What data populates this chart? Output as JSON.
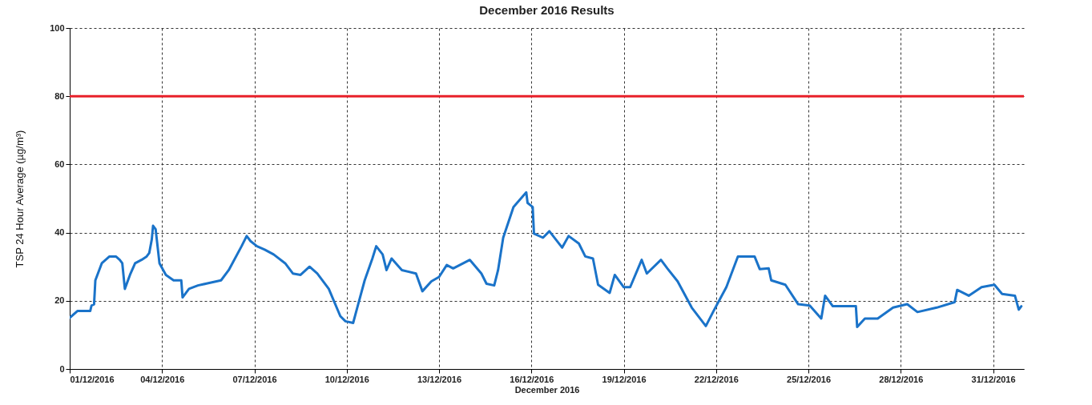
{
  "chart_data": {
    "type": "line",
    "title": "December 2016 Results",
    "xlabel": "December 2016",
    "ylabel": "TSP 24 Hour Average (µg/m³)",
    "xlim": [
      "2016-12-01",
      "2017-01-01"
    ],
    "ylim": [
      0,
      100
    ],
    "yticks": [
      0,
      20,
      40,
      60,
      80,
      100
    ],
    "xticks": [
      {
        "value": "2016-12-01",
        "label": "01/12/2016"
      },
      {
        "value": "2016-12-04",
        "label": "04/12/2016"
      },
      {
        "value": "2016-12-07",
        "label": "07/12/2016"
      },
      {
        "value": "2016-12-10",
        "label": "10/12/2016"
      },
      {
        "value": "2016-12-13",
        "label": "13/12/2016"
      },
      {
        "value": "2016-12-16",
        "label": "16/12/2016"
      },
      {
        "value": "2016-12-19",
        "label": "19/12/2016"
      },
      {
        "value": "2016-12-22",
        "label": "22/12/2016"
      },
      {
        "value": "2016-12-25",
        "label": "25/12/2016"
      },
      {
        "value": "2016-12-28",
        "label": "28/12/2016"
      },
      {
        "value": "2016-12-31",
        "label": "31/12/2016"
      }
    ],
    "grid": true,
    "line_style": "solid",
    "ref_lines": [
      {
        "axis": "y",
        "value": 80,
        "color": "#e8202a"
      }
    ],
    "x": [
      "2016-12-01T00:00",
      "2016-12-01T06:00",
      "2016-12-01T16:00",
      "2016-12-01T17:00",
      "2016-12-01T19:00",
      "2016-12-01T20:00",
      "2016-12-02T01:00",
      "2016-12-02T07:00",
      "2016-12-02T12:00",
      "2016-12-02T15:00",
      "2016-12-02T17:00",
      "2016-12-02T19:00",
      "2016-12-02T23:00",
      "2016-12-03T03:00",
      "2016-12-03T08:00",
      "2016-12-03T12:00",
      "2016-12-03T14:00",
      "2016-12-03T16:00",
      "2016-12-03T17:00",
      "2016-12-03T19:00",
      "2016-12-03T22:00",
      "2016-12-04T03:00",
      "2016-12-04T09:00",
      "2016-12-04T15:00",
      "2016-12-04T16:00",
      "2016-12-04T21:00",
      "2016-12-05T04:00",
      "2016-12-05T10:00",
      "2016-12-05T22:00",
      "2016-12-06T04:00",
      "2016-12-06T14:00",
      "2016-12-06T18:00",
      "2016-12-06T21:00",
      "2016-12-07T02:00",
      "2016-12-07T08:00",
      "2016-12-07T15:00",
      "2016-12-08T00:00",
      "2016-12-08T06:00",
      "2016-12-08T12:00",
      "2016-12-08T19:00",
      "2016-12-09T01:00",
      "2016-12-09T10:00",
      "2016-12-09T19:00",
      "2016-12-09T23:00",
      "2016-12-10T05:00",
      "2016-12-10T08:00",
      "2016-12-10T14:00",
      "2016-12-10T20:00",
      "2016-12-10T23:00",
      "2016-12-11T04:00",
      "2016-12-11T07:00",
      "2016-12-11T11:00",
      "2016-12-11T19:00",
      "2016-12-12T06:00",
      "2016-12-12T11:00",
      "2016-12-12T18:00",
      "2016-12-13T00:00",
      "2016-12-13T06:00",
      "2016-12-13T11:00",
      "2016-12-14T00:00",
      "2016-12-14T09:00",
      "2016-12-14T13:00",
      "2016-12-14T19:00",
      "2016-12-14T22:00",
      "2016-12-15T02:00",
      "2016-12-15T10:00",
      "2016-12-15T20:00",
      "2016-12-15T21:00",
      "2016-12-16T01:00",
      "2016-12-16T02:00",
      "2016-12-16T09:00",
      "2016-12-16T14:00",
      "2016-12-17T00:00",
      "2016-12-17T05:00",
      "2016-12-17T13:00",
      "2016-12-17T18:00",
      "2016-12-18T00:00",
      "2016-12-18T04:00",
      "2016-12-18T13:00",
      "2016-12-18T17:00",
      "2016-12-19T00:00",
      "2016-12-19T05:00",
      "2016-12-19T14:00",
      "2016-12-19T18:00",
      "2016-12-20T05:00",
      "2016-12-20T10:00",
      "2016-12-20T18:00",
      "2016-12-21T05:00",
      "2016-12-21T16:00",
      "2016-12-21T22:00",
      "2016-12-22T08:00",
      "2016-12-22T17:00",
      "2016-12-23T06:00",
      "2016-12-23T10:00",
      "2016-12-23T17:00",
      "2016-12-23T19:00",
      "2016-12-24T06:00",
      "2016-12-24T16:00",
      "2016-12-25T01:00",
      "2016-12-25T10:00",
      "2016-12-25T13:00",
      "2016-12-25T19:00",
      "2016-12-26T09:00",
      "2016-12-26T13:00",
      "2016-12-26T14:00",
      "2016-12-26T20:00",
      "2016-12-27T06:00",
      "2016-12-27T18:00",
      "2016-12-28T05:00",
      "2016-12-28T13:00",
      "2016-12-29T04:00",
      "2016-12-29T18:00",
      "2016-12-29T20:00",
      "2016-12-30T05:00",
      "2016-12-30T15:00",
      "2016-12-31T01:00",
      "2016-12-31T07:00",
      "2016-12-31T17:00",
      "2016-12-31T20:00",
      "2016-12-31T22:00"
    ],
    "series": [
      {
        "color": "#1a73c9",
        "values": [
          15,
          17,
          17,
          18.6,
          19,
          26,
          31,
          33,
          33,
          32,
          31,
          23.5,
          27.6,
          31,
          32,
          33,
          34,
          38,
          42,
          41,
          31,
          27.6,
          26,
          26,
          21,
          23.5,
          24.5,
          25,
          26,
          29,
          36,
          39,
          37.5,
          36,
          35,
          33.6,
          31,
          28,
          27.6,
          30,
          28,
          23.5,
          15.5,
          14,
          13.5,
          17.7,
          26,
          32.4,
          36,
          33.6,
          29,
          32.4,
          29,
          28,
          22.8,
          25.7,
          27,
          30.5,
          29.5,
          32,
          28,
          25,
          24.5,
          29,
          38.5,
          47.5,
          51.8,
          48.7,
          47.5,
          39.7,
          38.5,
          40.4,
          35.6,
          39,
          36.8,
          33,
          32.4,
          24.7,
          22.3,
          27.6,
          24,
          24,
          32,
          28,
          32,
          29.5,
          25.7,
          18,
          12.6,
          17,
          24,
          33,
          33,
          29.3,
          29.5,
          26,
          24.7,
          19,
          18.6,
          14.8,
          21.5,
          18.4,
          18.4,
          18.4,
          12.3,
          14.8,
          14.8,
          18,
          19,
          16.7,
          18,
          19.6,
          23.2,
          21.5,
          24,
          24.7,
          22,
          21.5,
          17.4,
          18.4
        ]
      }
    ]
  }
}
